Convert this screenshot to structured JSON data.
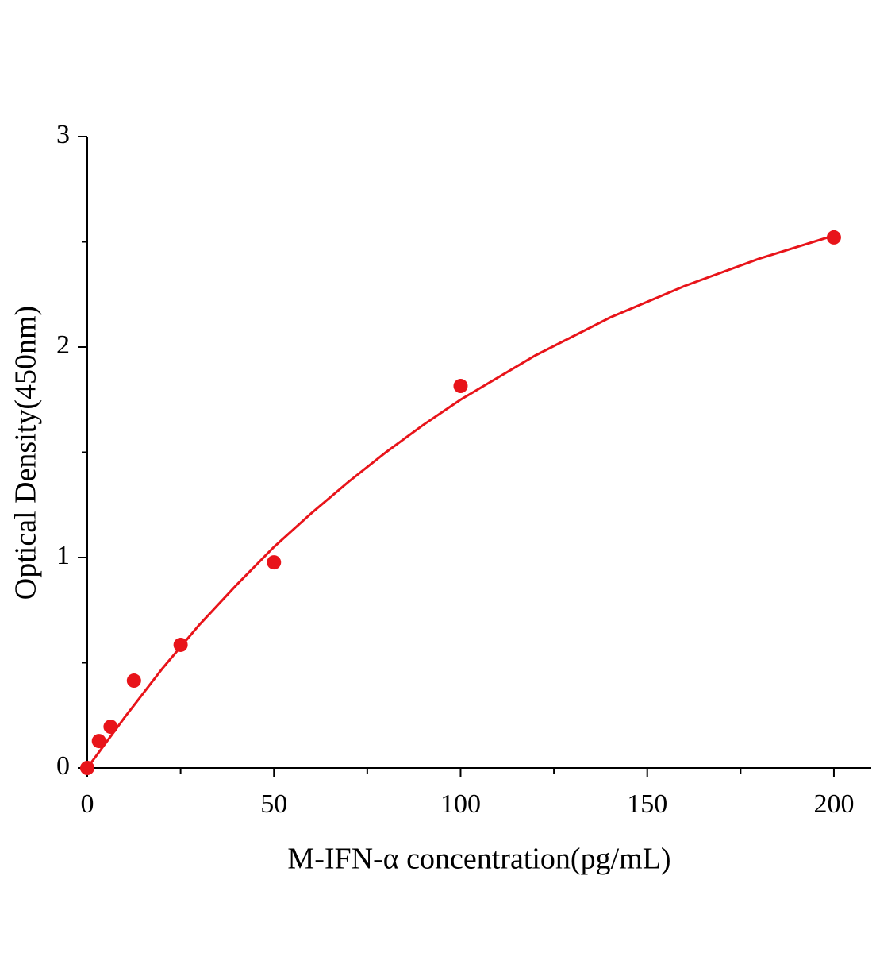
{
  "chart_data": {
    "type": "scatter",
    "x_label": "M-IFN-α concentration(pg/mL)",
    "y_label": "Optical Density(450nm)",
    "x": [
      0,
      3.125,
      6.25,
      12.5,
      25,
      50,
      100,
      200
    ],
    "values": [
      0,
      0.128,
      0.196,
      0.415,
      0.585,
      0.977,
      1.815,
      2.521
    ],
    "fit_x": [
      0,
      5,
      10,
      20,
      30,
      40,
      50,
      60,
      70,
      80,
      90,
      100,
      120,
      140,
      160,
      180,
      200
    ],
    "fit_values": [
      0,
      0.12,
      0.24,
      0.47,
      0.68,
      0.87,
      1.05,
      1.21,
      1.36,
      1.5,
      1.63,
      1.75,
      1.96,
      2.14,
      2.29,
      2.42,
      2.53
    ],
    "color": "#e8141a",
    "xlim": [
      0,
      210
    ],
    "ylim": [
      0,
      3
    ],
    "xticks": [
      0,
      50,
      100,
      150,
      200
    ],
    "yticks": [
      0,
      1,
      2,
      3
    ],
    "xminorticks": [
      25,
      75,
      125,
      175
    ],
    "yminorticks": [
      0.5,
      1.5,
      2.5
    ],
    "grid": false
  }
}
